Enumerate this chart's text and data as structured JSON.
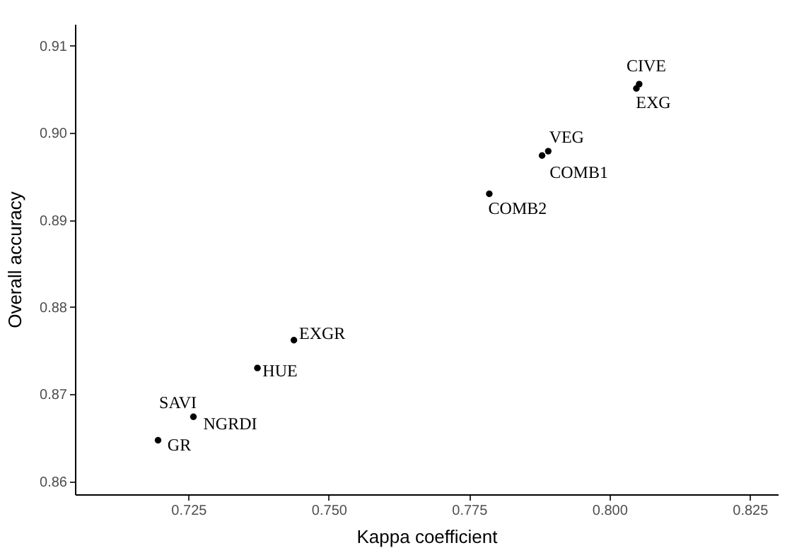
{
  "chart_data": {
    "type": "scatter",
    "xlabel": "Kappa coefficient",
    "ylabel": "Overall accuracy",
    "x": [
      0.8053,
      0.8048,
      0.7891,
      0.788,
      0.7786,
      0.7438,
      0.7373,
      0.7259,
      0.7196
    ],
    "series": [
      {
        "color": "#000000",
        "values": [
          0.9056,
          0.9051,
          0.8979,
          0.8974,
          0.893,
          0.8762,
          0.873,
          0.8674,
          0.8647
        ]
      }
    ],
    "xlim": [
      0.7048,
      0.83
    ],
    "xticks": [
      {
        "value": 0.725,
        "label": "0.725"
      },
      {
        "value": 0.75,
        "label": "0.750"
      },
      {
        "value": 0.775,
        "label": "0.775"
      },
      {
        "value": 0.8,
        "label": "0.800"
      },
      {
        "value": 0.825,
        "label": "0.825"
      }
    ],
    "ylim": [
      0.8585,
      0.9125
    ],
    "yticks": [
      {
        "value": 0.86,
        "label": "0.86"
      },
      {
        "value": 0.87,
        "label": "0.87"
      },
      {
        "value": 0.88,
        "label": "0.88"
      },
      {
        "value": 0.89,
        "label": "0.89"
      },
      {
        "value": 0.9,
        "label": "0.90"
      },
      {
        "value": 0.91,
        "label": "0.91"
      }
    ],
    "grid": false,
    "marker": "circle",
    "annotations": [
      {
        "text": "CIVE",
        "x": 0.8053,
        "y": 0.9056
      },
      {
        "text": "EXG",
        "x": 0.8048,
        "y": 0.9051
      },
      {
        "text": "VEG",
        "x": 0.7891,
        "y": 0.8979
      },
      {
        "text": "COMB1",
        "x": 0.788,
        "y": 0.8974
      },
      {
        "text": "COMB2",
        "x": 0.7786,
        "y": 0.893
      },
      {
        "text": "EXGR",
        "x": 0.7438,
        "y": 0.8762
      },
      {
        "text": "HUE",
        "x": 0.7373,
        "y": 0.873
      },
      {
        "text": "SAVI",
        "x": 0.7259,
        "y": 0.8674
      },
      {
        "text": "NGRDI",
        "x": 0.7259,
        "y": 0.8674
      },
      {
        "text": "GR",
        "x": 0.7196,
        "y": 0.8647
      }
    ]
  }
}
